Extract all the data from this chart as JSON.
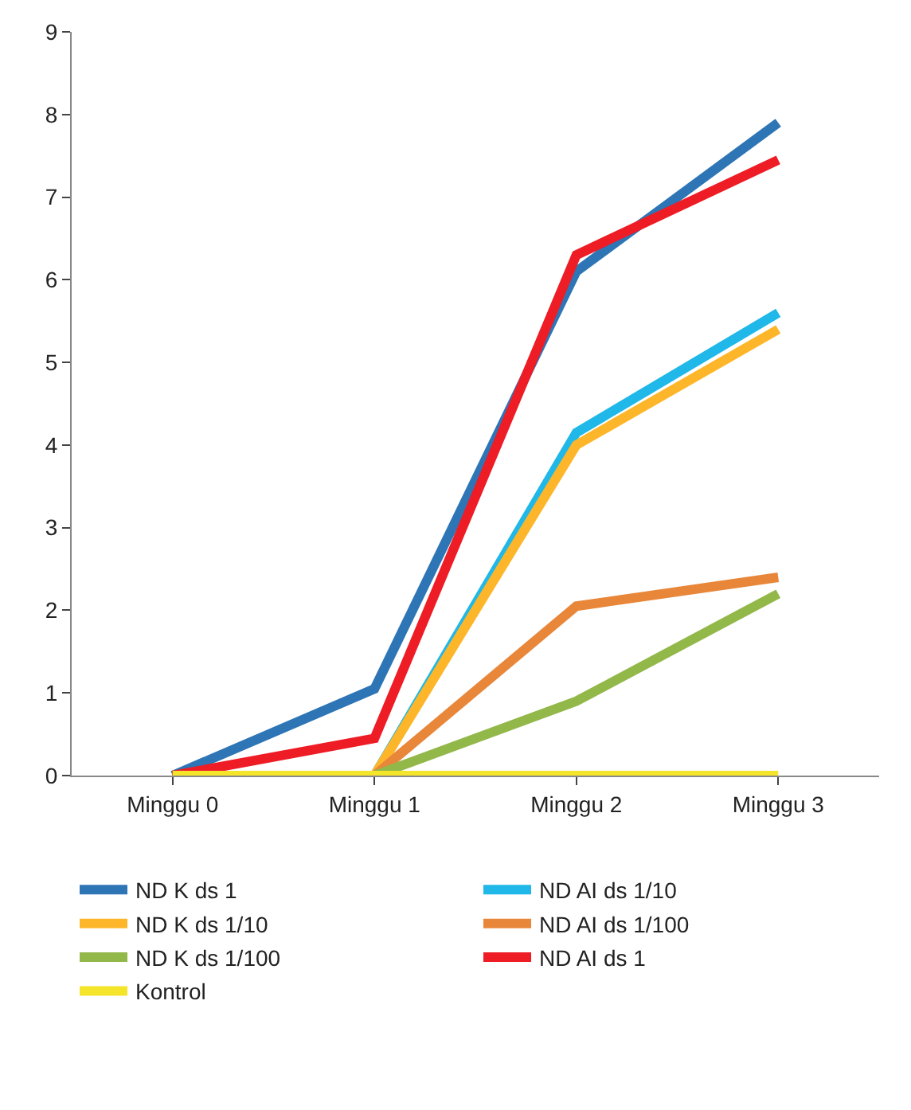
{
  "chart_data": {
    "type": "line",
    "categories": [
      "Minggu 0",
      "Minggu 1",
      "Minggu 2",
      "Minggu 3"
    ],
    "series": [
      {
        "name": "ND K ds 1",
        "color": "#2e75b6",
        "values": [
          0,
          1.05,
          6.1,
          7.9
        ]
      },
      {
        "name": "ND AI ds 1/10",
        "color": "#1fb8e8",
        "values": [
          0,
          0,
          4.15,
          5.6
        ]
      },
      {
        "name": "ND K ds 1/10",
        "color": "#fdb62a",
        "values": [
          0,
          0,
          4.0,
          5.4
        ]
      },
      {
        "name": "ND AI ds 1/100",
        "color": "#e8873a",
        "values": [
          0,
          0,
          2.05,
          2.4
        ]
      },
      {
        "name": "ND K ds 1/100",
        "color": "#92b84a",
        "values": [
          0,
          0,
          0.9,
          2.2
        ]
      },
      {
        "name": "ND AI ds 1",
        "color": "#ee1c25",
        "values": [
          0,
          0.45,
          6.3,
          7.45
        ]
      },
      {
        "name": "Kontrol",
        "color": "#f5e52a",
        "values": [
          0,
          0,
          0,
          0
        ]
      }
    ],
    "ylim": [
      0,
      9
    ],
    "yticks": [
      0,
      1,
      2,
      3,
      4,
      5,
      6,
      7,
      8,
      9
    ],
    "legend": "bottom",
    "marker": "none",
    "line_style": "solid"
  }
}
